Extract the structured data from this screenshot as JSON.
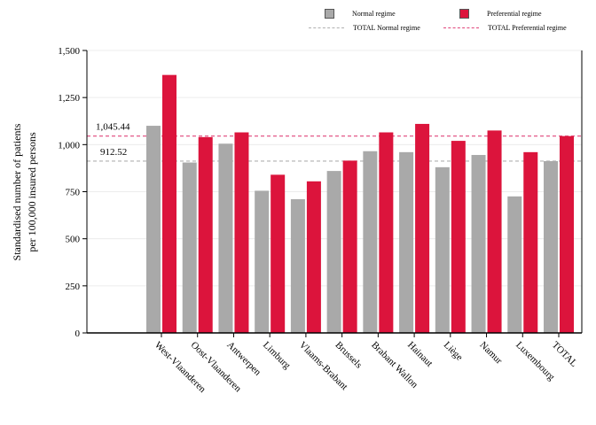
{
  "chart_data": {
    "type": "bar",
    "title": "",
    "ylabel_line1": "Standardised number of patients",
    "ylabel_line2": "per 100,000 insured persons",
    "xlabel": "",
    "ylim": [
      0,
      1500
    ],
    "yticks": [
      0,
      250,
      500,
      750,
      1000,
      1250,
      1500
    ],
    "ytick_labels": [
      "0",
      "250",
      "500",
      "750",
      "1,000",
      "1,250",
      "1,500"
    ],
    "grid": true,
    "legend_position": "top-right",
    "categories": [
      "West-Vlaanderen",
      "Oost-Vlaanderen",
      "Antwerpen",
      "Limburg",
      "Vlaams-Brabant",
      "Brussels",
      "Brabant Wallon",
      "Hainaut",
      "Liège",
      "Namur",
      "Luxembourg",
      "TOTAL"
    ],
    "series": [
      {
        "name": "Normal regime",
        "color": "#a9a9a9",
        "values": [
          1100,
          905,
          1005,
          755,
          710,
          860,
          965,
          960,
          880,
          945,
          725,
          912.52
        ]
      },
      {
        "name": "Preferential regime",
        "color": "#dc143c",
        "values": [
          1370,
          1040,
          1065,
          840,
          805,
          915,
          1065,
          1110,
          1020,
          1075,
          960,
          1045.44
        ]
      }
    ],
    "reference_lines": [
      {
        "name": "TOTAL Normal regime",
        "value": 912.52,
        "label": "912.52",
        "color": "#b0b0b0"
      },
      {
        "name": "TOTAL Preferential regime",
        "value": 1045.44,
        "label": "1,045.44",
        "color": "#e0457a"
      }
    ]
  }
}
